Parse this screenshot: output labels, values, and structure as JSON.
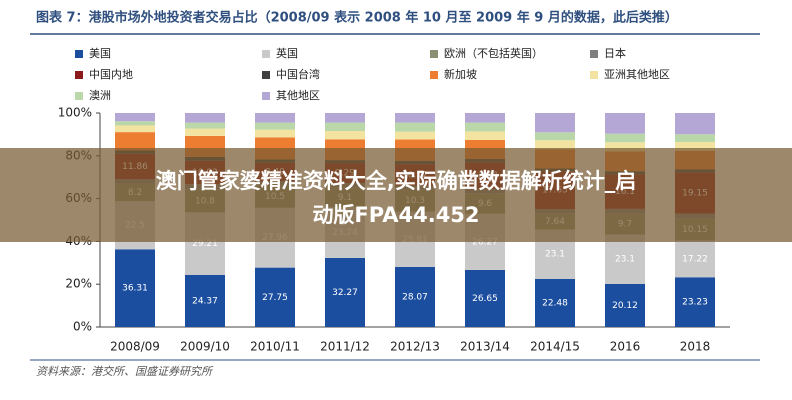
{
  "chart_data": {
    "type": "stacked_bar",
    "title": "图表 7：港股市场外地投资者交易占比（2008/09 表示 2008 年 10 月至 2009 年 9 月的数据，此后类推）",
    "source": "资料来源：港交所、国盛证券研究所",
    "categories": [
      "2008/09",
      "2009/10",
      "2010/11",
      "2011/12",
      "2012/13",
      "2013/14",
      "2014/15",
      "2016",
      "2018"
    ],
    "ylim": [
      0,
      100
    ],
    "yticks": [
      {
        "value": 0,
        "label": "0%"
      },
      {
        "value": 20,
        "label": "20%"
      },
      {
        "value": 40,
        "label": "40%"
      },
      {
        "value": 60,
        "label": "60%"
      },
      {
        "value": 80,
        "label": "80%"
      },
      {
        "value": 100,
        "label": "100%"
      }
    ],
    "series": [
      {
        "name": "美国",
        "color": "#1c4ea0",
        "labels": true,
        "values": [
          36.31,
          24.37,
          27.75,
          32.27,
          28.07,
          26.65,
          22.48,
          20.12,
          23.23
        ]
      },
      {
        "name": "英国",
        "color": "#c9c9c9",
        "labels": true,
        "values": [
          22.5,
          29.21,
          27.96,
          23.74,
          25.81,
          26.27,
          23.1,
          23.1,
          17.22
        ]
      },
      {
        "name": "欧洲（不包括英国）",
        "color": "#8a8f74",
        "labels": true,
        "values": [
          8.2,
          10.8,
          10.5,
          9.1,
          10.3,
          9.6,
          7.64,
          9.7,
          10.15
        ]
      },
      {
        "name": "日本",
        "color": "#7f7f7f",
        "labels": false,
        "values": [
          2.1,
          2.4,
          2.0,
          2.2,
          1.8,
          2.0,
          1.9,
          2.3,
          2.4
        ]
      },
      {
        "name": "中国内地",
        "color": "#8b1a1a",
        "labels": true,
        "values": [
          11.86,
          10.92,
          8.49,
          9.29,
          10.12,
          12.48,
          17.65,
          16.1,
          19.15
        ]
      },
      {
        "name": "中国台湾",
        "color": "#404040",
        "labels": false,
        "values": [
          1.5,
          1.8,
          1.6,
          1.4,
          1.6,
          1.5,
          1.3,
          1.5,
          1.6
        ]
      },
      {
        "name": "新加坡",
        "color": "#ed7d31",
        "labels": false,
        "values": [
          8.6,
          9.8,
          10.3,
          9.7,
          9.9,
          8.9,
          9.0,
          9.2,
          8.6
        ]
      },
      {
        "name": "亚洲其他地区",
        "color": "#f3e3a0",
        "labels": false,
        "values": [
          3.1,
          3.4,
          3.6,
          3.9,
          3.7,
          4.0,
          4.2,
          4.3,
          4.1
        ]
      },
      {
        "name": "澳洲",
        "color": "#b9d7a8",
        "labels": false,
        "values": [
          2.0,
          2.8,
          3.3,
          3.9,
          4.2,
          4.1,
          3.7,
          4.0,
          3.6
        ]
      },
      {
        "name": "其他地区",
        "color": "#b4a7d6",
        "labels": false,
        "values": [
          3.83,
          4.5,
          4.5,
          4.5,
          4.5,
          4.5,
          9.03,
          9.68,
          9.95
        ]
      }
    ]
  },
  "overlay": {
    "lines": [
      "澳门管家婆精准资料大全,实际确凿数据解析统计_启",
      "动版FPA44.452"
    ]
  }
}
